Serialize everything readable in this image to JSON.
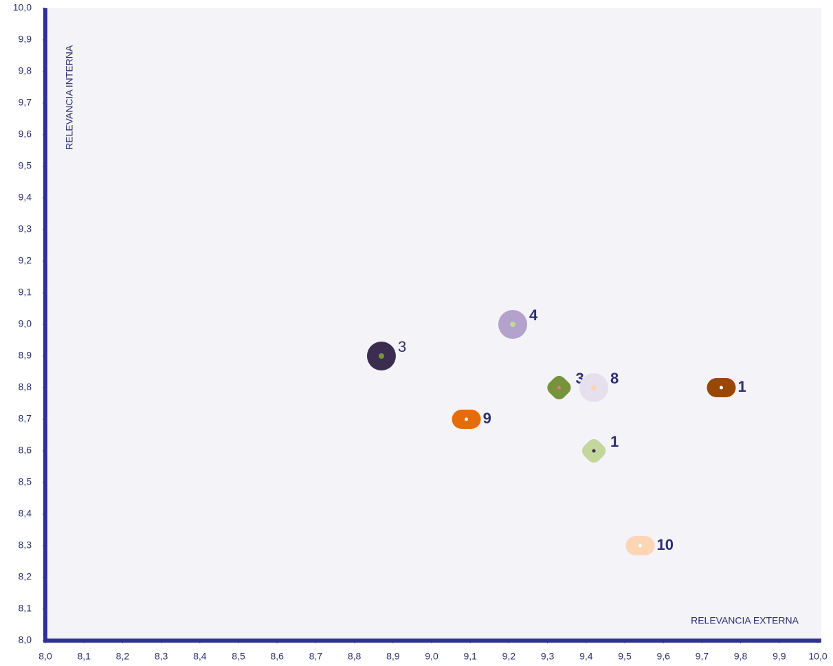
{
  "chart_data": {
    "type": "scatter",
    "xlabel": "RELEVANCIA EXTERNA",
    "ylabel": "RELEVANCIA INTERNA",
    "xlim": [
      8.0,
      10.0
    ],
    "ylim": [
      8.0,
      10.0
    ],
    "xticks": [
      {
        "value": 8.0,
        "label": "8,0"
      },
      {
        "value": 8.1,
        "label": "8,1"
      },
      {
        "value": 8.2,
        "label": "8,2"
      },
      {
        "value": 8.3,
        "label": "8,3"
      },
      {
        "value": 8.4,
        "label": "8,4"
      },
      {
        "value": 8.5,
        "label": "8,5"
      },
      {
        "value": 8.6,
        "label": "8,6"
      },
      {
        "value": 8.7,
        "label": "8,7"
      },
      {
        "value": 8.8,
        "label": "8,8"
      },
      {
        "value": 8.9,
        "label": "8,9"
      },
      {
        "value": 9.0,
        "label": "9,0"
      },
      {
        "value": 9.1,
        "label": "9,1"
      },
      {
        "value": 9.2,
        "label": "9,2"
      },
      {
        "value": 9.3,
        "label": "9,3"
      },
      {
        "value": 9.4,
        "label": "9,4"
      },
      {
        "value": 9.5,
        "label": "9,5"
      },
      {
        "value": 9.6,
        "label": "9,6"
      },
      {
        "value": 9.7,
        "label": "9,7"
      },
      {
        "value": 9.8,
        "label": "9,8"
      },
      {
        "value": 9.9,
        "label": "9,9"
      },
      {
        "value": 10.0,
        "label": "10,0"
      }
    ],
    "yticks": [
      {
        "value": 8.0,
        "label": "8,0"
      },
      {
        "value": 8.1,
        "label": "8,1"
      },
      {
        "value": 8.2,
        "label": "8,2"
      },
      {
        "value": 8.3,
        "label": "8,3"
      },
      {
        "value": 8.4,
        "label": "8,4"
      },
      {
        "value": 8.5,
        "label": "8,5"
      },
      {
        "value": 8.6,
        "label": "8,6"
      },
      {
        "value": 8.7,
        "label": "8,7"
      },
      {
        "value": 8.8,
        "label": "8,8"
      },
      {
        "value": 8.9,
        "label": "8,9"
      },
      {
        "value": 9.0,
        "label": "9,0"
      },
      {
        "value": 9.1,
        "label": "9,1"
      },
      {
        "value": 9.2,
        "label": "9,2"
      },
      {
        "value": 9.3,
        "label": "9,3"
      },
      {
        "value": 9.4,
        "label": "9,4"
      },
      {
        "value": 9.5,
        "label": "9,5"
      },
      {
        "value": 9.6,
        "label": "9,6"
      },
      {
        "value": 9.7,
        "label": "9,7"
      },
      {
        "value": 9.8,
        "label": "9,8"
      },
      {
        "value": 9.9,
        "label": "9,9"
      },
      {
        "value": 10.0,
        "label": "10,0"
      }
    ],
    "points": [
      {
        "x": 8.87,
        "y": 8.9,
        "label": "3",
        "color": "#3b2d4f",
        "inner": "#76923c",
        "shape": "circle",
        "bold": false
      },
      {
        "x": 9.21,
        "y": 9.0,
        "label": "4",
        "color": "#b3a2cc",
        "inner": "#c3d69b",
        "shape": "circle",
        "bold": true
      },
      {
        "x": 9.33,
        "y": 8.8,
        "label": "3",
        "color": "#76923c",
        "inner": "#f07090",
        "shape": "diamond",
        "bold": true
      },
      {
        "x": 9.42,
        "y": 8.8,
        "label": "8",
        "color": "#e6e0ee",
        "inner": "#fcd5b5",
        "shape": "circle",
        "bold": true
      },
      {
        "x": 9.75,
        "y": 8.8,
        "label": "1",
        "color": "#974706",
        "inner": "#ffffff",
        "shape": "pill",
        "bold": true
      },
      {
        "x": 9.09,
        "y": 8.7,
        "label": "9",
        "color": "#e46c0a",
        "inner": "#ffffff",
        "shape": "pill",
        "bold": true
      },
      {
        "x": 9.42,
        "y": 8.6,
        "label": "1",
        "color": "#c3d69b",
        "inner": "#3b2d4f",
        "shape": "diamond",
        "bold": true
      },
      {
        "x": 9.54,
        "y": 8.3,
        "label": "10",
        "color": "#fcd5b5",
        "inner": "#ffffff",
        "shape": "pill",
        "bold": true
      }
    ]
  }
}
